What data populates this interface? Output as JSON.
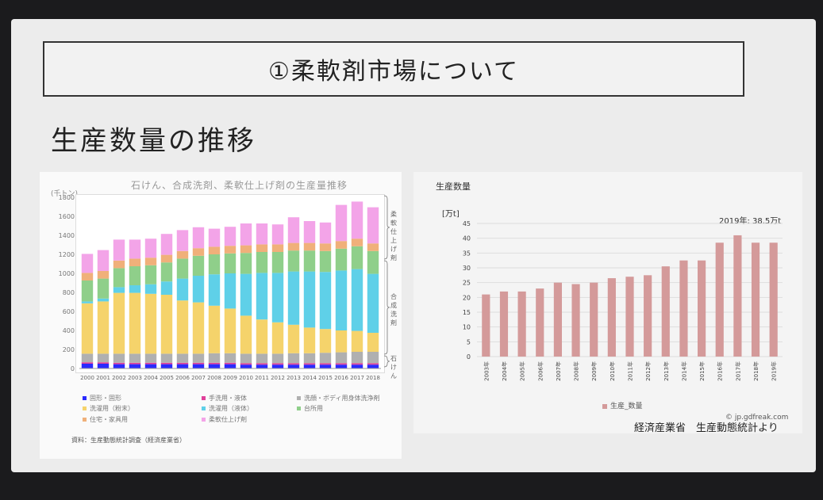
{
  "slide": {
    "title": "①柔軟剤市場について",
    "subtitle": "生産数量の推移",
    "footnote": "経済産業省　生産動態統計より"
  },
  "chart_data": [
    {
      "type": "bar",
      "stacked": true,
      "title": "石けん、合成洗剤、柔軟仕上げ剤の生産量推移",
      "ylabel": "(千トン)",
      "ylim": [
        0,
        1800
      ],
      "yticks": [
        0,
        200,
        400,
        600,
        800,
        1000,
        1200,
        1400,
        1600,
        1800
      ],
      "grid": false,
      "categories": [
        "2000",
        "2001",
        "2002",
        "2003",
        "2004",
        "2005",
        "2006",
        "2007",
        "2008",
        "2009",
        "2010",
        "2011",
        "2012",
        "2013",
        "2014",
        "2015",
        "2016",
        "2017",
        "2018"
      ],
      "series": [
        {
          "name": "固形・固形",
          "color": "#2a2aff",
          "values": [
            50,
            50,
            45,
            45,
            45,
            45,
            45,
            45,
            45,
            45,
            40,
            40,
            40,
            40,
            40,
            40,
            40,
            40,
            40
          ]
        },
        {
          "name": "手洗用・液体",
          "color": "#e0409a",
          "values": [
            15,
            15,
            15,
            15,
            15,
            15,
            15,
            15,
            15,
            15,
            15,
            15,
            15,
            15,
            15,
            15,
            15,
            15,
            15
          ]
        },
        {
          "name": "洗顔・ボディ用身体洗浄剤",
          "color": "#b0b0b0",
          "values": [
            90,
            90,
            95,
            95,
            95,
            95,
            95,
            95,
            100,
            100,
            100,
            100,
            100,
            105,
            105,
            110,
            115,
            120,
            120
          ]
        },
        {
          "name": "洗濯用（粉末）",
          "color": "#f5d36b",
          "values": [
            530,
            550,
            640,
            640,
            630,
            620,
            560,
            540,
            500,
            470,
            400,
            360,
            330,
            300,
            270,
            250,
            230,
            220,
            200
          ]
        },
        {
          "name": "洗濯用（液体）",
          "color": "#5fd0e8",
          "values": [
            20,
            30,
            60,
            80,
            100,
            140,
            230,
            280,
            330,
            370,
            440,
            490,
            520,
            560,
            590,
            600,
            630,
            650,
            620
          ]
        },
        {
          "name": "台所用",
          "color": "#8fcf8a",
          "values": [
            220,
            210,
            200,
            200,
            200,
            200,
            210,
            210,
            210,
            210,
            220,
            220,
            220,
            220,
            220,
            220,
            230,
            240,
            240
          ]
        },
        {
          "name": "住宅・家具用",
          "color": "#f0b07a",
          "values": [
            80,
            80,
            80,
            80,
            80,
            80,
            80,
            80,
            80,
            80,
            80,
            80,
            80,
            80,
            80,
            80,
            80,
            80,
            80
          ]
        },
        {
          "name": "柔軟仕上げ剤",
          "color": "#f3a4e8",
          "values": [
            200,
            220,
            220,
            200,
            200,
            220,
            220,
            220,
            190,
            200,
            230,
            220,
            210,
            270,
            230,
            220,
            380,
            390,
            380
          ]
        }
      ],
      "side_labels": [
        "柔軟仕上げ剤",
        "合成洗剤",
        "石けん"
      ],
      "source": "資料：生産動態統計調査（経済産業省）"
    },
    {
      "type": "bar",
      "title": "生産数量",
      "ylabel": "[万t]",
      "ylim": [
        0,
        45
      ],
      "yticks": [
        0,
        5,
        10,
        15,
        20,
        25,
        30,
        35,
        40,
        45
      ],
      "grid": true,
      "categories": [
        "2003年",
        "2004年",
        "2005年",
        "2006年",
        "2007年",
        "2008年",
        "2009年",
        "2010年",
        "2011年",
        "2012年",
        "2013年",
        "2014年",
        "2015年",
        "2016年",
        "2017年",
        "2018年",
        "2019年"
      ],
      "series": [
        {
          "name": "生産_数量",
          "color": "#d49a9a",
          "values": [
            21,
            22,
            22,
            23,
            25,
            24.5,
            25,
            26.5,
            27,
            27.5,
            30.5,
            32.5,
            32.5,
            38.5,
            41,
            38.5,
            38.5
          ]
        }
      ],
      "annotation": "2019年: 38.5万t",
      "credit": "© jp.gdfreak.com"
    }
  ]
}
